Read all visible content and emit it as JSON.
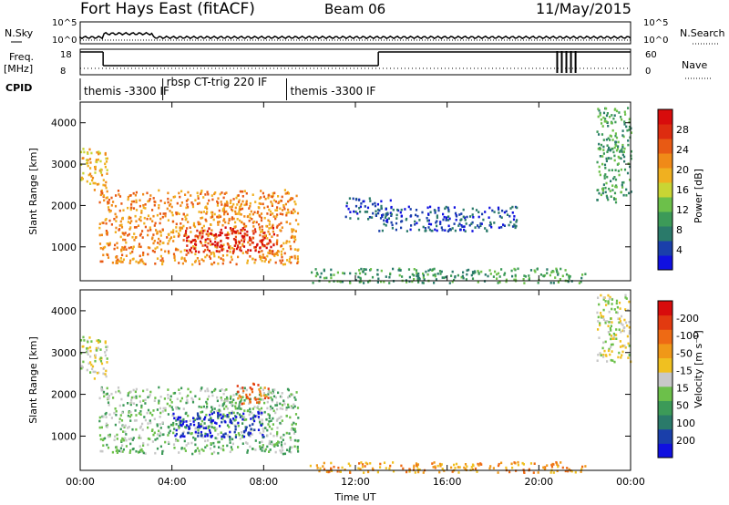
{
  "header": {
    "station": "Fort Hays East (fitACF)",
    "beam": "Beam 06",
    "date": "11/May/2015"
  },
  "top_panels": {
    "nsky_label": "N.Sky",
    "nsearch_label": "N.Search",
    "freq_label": "Freq.",
    "freq_unit": "[MHz]",
    "nave_label": "Nave",
    "cpid_label": "CPID",
    "noise_ticks_left": [
      "10^5",
      "10^0"
    ],
    "noise_ticks_right": [
      "10^5",
      "10^0"
    ],
    "freq_ticks": [
      "18",
      "8"
    ],
    "nave_ticks": [
      "60",
      "0"
    ],
    "cpid_segments": [
      {
        "label": "themis -3300 IF",
        "start_h": 0.0,
        "end_h": 3.6
      },
      {
        "label": "rbsp CT-trig 220 IF",
        "start_h": 3.6,
        "end_h": 9.0
      },
      {
        "label": "themis -3300 IF",
        "start_h": 9.0,
        "end_h": 24.0
      }
    ],
    "freq_steps": [
      {
        "start_h": 0.0,
        "end_h": 1.0,
        "level": "high"
      },
      {
        "start_h": 1.0,
        "end_h": 13.0,
        "level": "low"
      },
      {
        "start_h": 13.0,
        "end_h": 24.0,
        "level": "high"
      }
    ]
  },
  "chart_data": [
    {
      "type": "heatmap",
      "name": "power",
      "ylabel": "Slant Range [km]",
      "xlabel": "",
      "ylim": [
        180,
        4500
      ],
      "yticks": [
        "1000",
        "2000",
        "3000",
        "4000"
      ],
      "colorbar": {
        "label": "Power [dB]",
        "ticks": [
          "4",
          "8",
          "12",
          "16",
          "20",
          "24",
          "28"
        ],
        "colors": [
          "#1010e0",
          "#1a3faa",
          "#2a7a6a",
          "#3c9a58",
          "#6cc04a",
          "#c9d534",
          "#f0b020",
          "#f08a18",
          "#e85a14",
          "#dd2c10",
          "#d80c0c"
        ]
      },
      "regions": [
        {
          "x0": 0.0,
          "x1": 1.2,
          "y0": 2400,
          "y1": 3400,
          "c": 6
        },
        {
          "x0": 0.8,
          "x1": 9.5,
          "y0": 600,
          "y1": 2400,
          "c": 7
        },
        {
          "x0": 4.5,
          "x1": 8.5,
          "y0": 900,
          "y1": 1500,
          "c": 10
        },
        {
          "x0": 10.0,
          "x1": 22.0,
          "y0": 150,
          "y1": 500,
          "c": 3
        },
        {
          "x0": 11.5,
          "x1": 13.5,
          "y0": 1700,
          "y1": 2200,
          "c": 1
        },
        {
          "x0": 13.0,
          "x1": 19.0,
          "y0": 1400,
          "y1": 2000,
          "c": 1
        },
        {
          "x0": 22.5,
          "x1": 24.0,
          "y0": 2100,
          "y1": 4400,
          "c": 3
        }
      ]
    },
    {
      "type": "heatmap",
      "name": "velocity",
      "ylabel": "Slant Range [km]",
      "xlabel": "Time UT",
      "ylim": [
        180,
        4500
      ],
      "yticks": [
        "1000",
        "2000",
        "3000",
        "4000"
      ],
      "xticks": [
        "00:00",
        "04:00",
        "08:00",
        "12:00",
        "16:00",
        "20:00",
        "00:00"
      ],
      "colorbar": {
        "label": "Velocity [m s⁻¹]",
        "ticks": [
          "200",
          "100",
          "50",
          "15",
          "-15",
          "-50",
          "-100",
          "-200"
        ],
        "colors": [
          "#1010e0",
          "#1a3faa",
          "#2a7a6a",
          "#3c9a58",
          "#6cc04a",
          "#c8c8c8",
          "#f0c020",
          "#f09818",
          "#ee6a14",
          "#e23a10",
          "#d80c0c"
        ]
      },
      "regions": [
        {
          "x0": 0.0,
          "x1": 1.2,
          "y0": 2400,
          "y1": 3400,
          "c": 5
        },
        {
          "x0": 0.8,
          "x1": 9.5,
          "y0": 600,
          "y1": 2200,
          "c": 4
        },
        {
          "x0": 4.0,
          "x1": 8.0,
          "y0": 1000,
          "y1": 1600,
          "c": 0
        },
        {
          "x0": 6.8,
          "x1": 8.2,
          "y0": 1800,
          "y1": 2300,
          "c": 8
        },
        {
          "x0": 10.0,
          "x1": 22.0,
          "y0": 150,
          "y1": 400,
          "c": 7
        },
        {
          "x0": 22.5,
          "x1": 24.0,
          "y0": 2800,
          "y1": 4400,
          "c": 5
        }
      ]
    }
  ]
}
